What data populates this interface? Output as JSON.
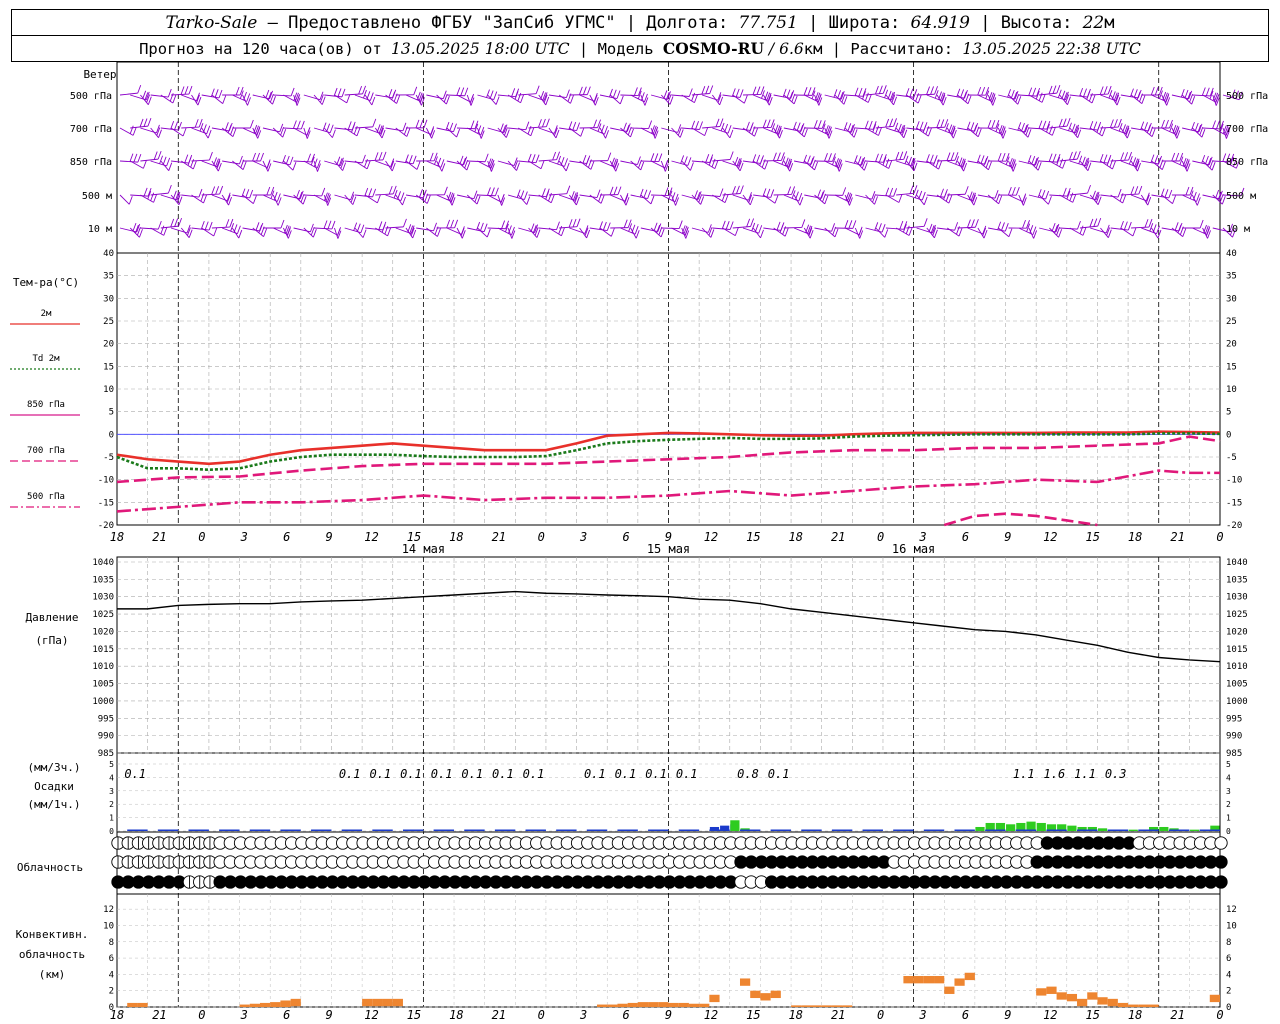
{
  "header": {
    "station": "Tarko-Sale",
    "line1_provider": " – Предоставлено ФГБУ \"ЗапСиб УГМС\" | Долгота: ",
    "lon": "77.751",
    "line1_lat_label": " | Широта: ",
    "lat": "64.919",
    "line1_alt_label": " | Высота: ",
    "alt": "22",
    "alt_unit": "м",
    "line2_prefix": "Прогноз на 120 часа(ов) от ",
    "run": "13.05.2025 18:00 UTC",
    "line2_model_label": " | Модель ",
    "model": "COSMO-RU",
    "model_res": " / 6.6",
    "model_res_unit": "км",
    "line2_calc_label": " | Рассчитано: ",
    "calc": "13.05.2025 22:38 UTC"
  },
  "wind_panel": {
    "title": "Ветер",
    "levels": [
      "500 гПа",
      "700 гПа",
      "850 гПа",
      "500  м",
      "10   м"
    ],
    "barb_color": "#8b00c8"
  },
  "temp_panel": {
    "title": "Тем-ра(°C)",
    "legend": [
      {
        "label": "2м",
        "color": "#e8302a",
        "style": "solid"
      },
      {
        "label": "Td  2м",
        "color": "#1a7a1a",
        "style": "dotted"
      },
      {
        "label": "850 гПа",
        "color": "#d81b8c",
        "style": "solid"
      },
      {
        "label": "700 гПа",
        "color": "#e0187a",
        "style": "dash"
      },
      {
        "label": "500 гПа",
        "color": "#e0187a",
        "style": "dashdot"
      }
    ],
    "y_ticks": [
      "40",
      "35",
      "30",
      "25",
      "20",
      "15",
      "10",
      "5",
      "0",
      "-5",
      "-10",
      "-15",
      "-20"
    ]
  },
  "time_axis": {
    "hour_labels": [
      "18",
      "21",
      "0",
      "3",
      "6",
      "9",
      "12",
      "15",
      "18",
      "21",
      "0",
      "3",
      "6",
      "9",
      "12",
      "15",
      "18",
      "21",
      "0",
      "3",
      "6",
      "9",
      "12",
      "15",
      "18",
      "21",
      "0"
    ],
    "day_labels": [
      "14 мая",
      "15 мая",
      "16 мая"
    ]
  },
  "pressure_panel": {
    "title_line1": "Давление",
    "title_line2": "(гПа)",
    "y_ticks": [
      "1040",
      "1035",
      "1030",
      "1025",
      "1020",
      "1015",
      "1010",
      "1005",
      "1000",
      "995",
      "990",
      "985"
    ]
  },
  "precip_panel": {
    "label_top": "(мм/3ч.)",
    "label_mid": "Осадки",
    "label_bot": "(мм/1ч.)",
    "y_ticks": [
      "5",
      "4",
      "3",
      "2",
      "1",
      "0"
    ],
    "totals": [
      {
        "h": 1,
        "v": "0.1"
      },
      {
        "h": 22,
        "v": "0.1"
      },
      {
        "h": 25,
        "v": "0.1"
      },
      {
        "h": 28,
        "v": "0.1"
      },
      {
        "h": 31,
        "v": "0.1"
      },
      {
        "h": 34,
        "v": "0.1"
      },
      {
        "h": 37,
        "v": "0.1"
      },
      {
        "h": 40,
        "v": "0.1"
      },
      {
        "h": 46,
        "v": "0.1"
      },
      {
        "h": 49,
        "v": "0.1"
      },
      {
        "h": 52,
        "v": "0.1"
      },
      {
        "h": 55,
        "v": "0.1"
      },
      {
        "h": 61,
        "v": "0.8"
      },
      {
        "h": 64,
        "v": "0.1"
      },
      {
        "h": 88,
        "v": "1.1"
      },
      {
        "h": 91,
        "v": "1.6"
      },
      {
        "h": 94,
        "v": "1.1"
      },
      {
        "h": 97,
        "v": "0.3"
      }
    ]
  },
  "cloud_panel": {
    "title": "Облачность"
  },
  "conv_panel": {
    "label1": "Конвективн.",
    "label2": "облачность",
    "label3": "(км)",
    "y_ticks": [
      "12",
      "10",
      "8",
      "6",
      "4",
      "2",
      "0"
    ]
  },
  "chart_data": [
    {
      "type": "line",
      "title": "Тем-ра(°C)",
      "ylim": [
        -20,
        40
      ],
      "x_unit": "hours since 13.05.2025 18:00 UTC",
      "series": [
        {
          "name": "2м",
          "x": [
            0,
            3,
            6,
            9,
            12,
            15,
            18,
            21,
            24,
            27,
            30,
            33,
            36,
            39,
            42,
            45,
            48,
            51,
            54,
            57,
            60,
            63,
            66,
            69,
            72,
            75,
            78,
            81,
            84,
            87,
            90,
            93,
            96,
            99,
            102,
            105,
            108
          ],
          "values": [
            -4.5,
            -5.5,
            -6,
            -6.5,
            -6,
            -4.5,
            -3.5,
            -3,
            -2.5,
            -2,
            -2.5,
            -3,
            -3.5,
            -3.5,
            -3.5,
            -2,
            -0.3,
            0,
            0.3,
            0.2,
            0,
            -0.2,
            -0.3,
            -0.3,
            0,
            0.2,
            0.3,
            0.3,
            0.3,
            0.3,
            0.3,
            0.4,
            0.4,
            0.4,
            0.6,
            0.5,
            0.4
          ]
        },
        {
          "name": "Td  2м",
          "x": [
            0,
            3,
            6,
            9,
            12,
            15,
            18,
            21,
            24,
            27,
            30,
            33,
            36,
            39,
            42,
            45,
            48,
            51,
            54,
            57,
            60,
            63,
            66,
            69,
            72,
            75,
            78,
            81,
            84,
            87,
            90,
            93,
            96,
            99,
            102,
            105,
            108
          ],
          "values": [
            -5,
            -7.5,
            -7.5,
            -7.8,
            -7.5,
            -6,
            -5,
            -4.5,
            -4.5,
            -4.5,
            -4.8,
            -5,
            -5,
            -5,
            -4.8,
            -3.5,
            -2,
            -1.5,
            -1.2,
            -1,
            -0.8,
            -1,
            -1,
            -0.9,
            -0.5,
            -0.3,
            -0.2,
            -0.1,
            0,
            0,
            0,
            0,
            0,
            0,
            0.2,
            0.2,
            0.1
          ]
        },
        {
          "name": "700 гПа",
          "x": [
            0,
            6,
            12,
            18,
            24,
            30,
            36,
            42,
            48,
            54,
            60,
            66,
            72,
            78,
            84,
            90,
            96,
            102,
            105,
            108
          ],
          "values": [
            -10.5,
            -9.5,
            -9.3,
            -8,
            -7,
            -6.5,
            -6.5,
            -6.5,
            -6,
            -5.5,
            -5,
            -4,
            -3.5,
            -3.5,
            -3,
            -3,
            -2.5,
            -2,
            -0.5,
            -1.5
          ]
        },
        {
          "name": "500 гПа",
          "x": [
            0,
            6,
            12,
            18,
            24,
            30,
            36,
            42,
            48,
            54,
            60,
            66,
            72,
            78,
            84,
            90,
            96,
            102,
            105,
            108
          ],
          "values": [
            -17,
            -16,
            -15,
            -15,
            -14.5,
            -13.5,
            -14.5,
            -14,
            -14,
            -13.5,
            -12.5,
            -13.5,
            -12.5,
            -11.5,
            -11,
            -10,
            -10.5,
            -8,
            -8.5,
            -8.5
          ]
        },
        {
          "name": "850 гПа",
          "x": [
            81,
            84,
            87,
            90,
            93,
            96
          ],
          "values": [
            -20,
            -18,
            -17.5,
            -18,
            -19,
            -20
          ]
        }
      ]
    },
    {
      "type": "line",
      "title": "Давление",
      "ylim": [
        985,
        1040
      ],
      "series": [
        {
          "name": "Давление",
          "x": [
            0,
            3,
            6,
            9,
            12,
            15,
            18,
            21,
            24,
            27,
            30,
            33,
            36,
            39,
            42,
            45,
            48,
            51,
            54,
            57,
            60,
            63,
            66,
            69,
            72,
            75,
            78,
            81,
            84,
            87,
            90,
            93,
            96,
            99,
            102,
            105,
            108
          ],
          "values": [
            1026.5,
            1026.5,
            1027.5,
            1027.8,
            1028,
            1028,
            1028.5,
            1028.8,
            1029,
            1029.5,
            1030,
            1030.5,
            1031,
            1031.5,
            1031,
            1030.8,
            1030.5,
            1030.3,
            1030,
            1029.3,
            1029,
            1028,
            1026.5,
            1025.5,
            1024.5,
            1023.5,
            1022.5,
            1021.5,
            1020.5,
            1020,
            1019,
            1017.5,
            1016,
            1014,
            1012.5,
            1011.8,
            1011.3
          ]
        }
      ]
    },
    {
      "type": "bar",
      "title": "Осадки",
      "ylim": [
        0,
        5
      ],
      "series": [
        {
          "name": "мм/1ч. (снег)",
          "x": [
            58,
            59,
            60
          ],
          "values": [
            0.3,
            0.4,
            0.5
          ]
        },
        {
          "name": "мм/1ч. (дождь)",
          "x": [
            60,
            61,
            84,
            85,
            86,
            87,
            88,
            89,
            90,
            91,
            92,
            93,
            94,
            95,
            96,
            97,
            98,
            99,
            100,
            101,
            102,
            103,
            104,
            105,
            106,
            107
          ],
          "values": [
            0.8,
            0.2,
            0.3,
            0.6,
            0.6,
            0.5,
            0.6,
            0.7,
            0.6,
            0.5,
            0.5,
            0.4,
            0.3,
            0.3,
            0.2,
            0.1,
            0.1,
            0.1,
            0.1,
            0.3,
            0.3,
            0.2,
            0.1,
            0.1,
            0.1,
            0.4
          ]
        }
      ]
    },
    {
      "type": "bar",
      "title": "Конвективн. облачность (км)",
      "ylim": [
        0,
        13
      ],
      "series": [
        {
          "name": "top",
          "x": [
            1,
            2,
            3,
            4,
            5,
            6,
            7,
            8,
            9,
            10,
            11,
            12,
            13,
            14,
            15,
            16,
            17,
            18,
            19,
            20,
            21,
            22,
            23,
            24,
            25,
            26,
            27,
            28,
            29,
            30,
            31,
            32,
            33,
            34,
            35,
            36,
            37,
            38,
            39,
            40,
            41,
            42,
            43,
            44,
            45,
            46,
            47,
            48,
            49,
            50,
            51,
            52,
            53,
            54,
            55,
            56,
            57,
            58,
            59,
            60,
            61,
            62,
            63,
            64,
            65,
            66,
            67,
            68,
            69,
            70,
            71,
            72,
            73,
            74,
            75,
            76,
            77,
            78,
            79,
            80,
            81,
            82,
            83,
            84,
            85,
            86,
            87,
            88,
            89,
            90,
            91,
            92,
            93,
            94,
            95,
            96,
            97,
            98,
            99,
            100,
            101,
            102,
            103,
            104,
            105,
            106,
            107
          ],
          "values": [
            0.5,
            0.5,
            0,
            0,
            0,
            0,
            0,
            0,
            0,
            0,
            0,
            0.3,
            0.4,
            0.5,
            0.6,
            0.8,
            1,
            0,
            0,
            0,
            0,
            0,
            0,
            1,
            1,
            1,
            1,
            0,
            0,
            0,
            0,
            0,
            0,
            0,
            0,
            0,
            0,
            0,
            0,
            0,
            0,
            0,
            0,
            0,
            0,
            0,
            0.3,
            0.3,
            0.4,
            0.5,
            0.6,
            0.6,
            0.6,
            0.5,
            0.5,
            0.4,
            0.4,
            1.5,
            0,
            0,
            3.5,
            2,
            1.7,
            2,
            0,
            0.2,
            0.2,
            0.2,
            0.2,
            0.2,
            0.2,
            0,
            0,
            0,
            0,
            0,
            3.8,
            3.8,
            3.8,
            3.8,
            2.5,
            3.5,
            4.2,
            0,
            0,
            0,
            0,
            0,
            0,
            2.3,
            2.5,
            1.8,
            1.6,
            1,
            1.8,
            1.2,
            1,
            0.5,
            0.3,
            0.3,
            0.3,
            0,
            0,
            0,
            0,
            0,
            1.5
          ]
        }
      ]
    }
  ]
}
